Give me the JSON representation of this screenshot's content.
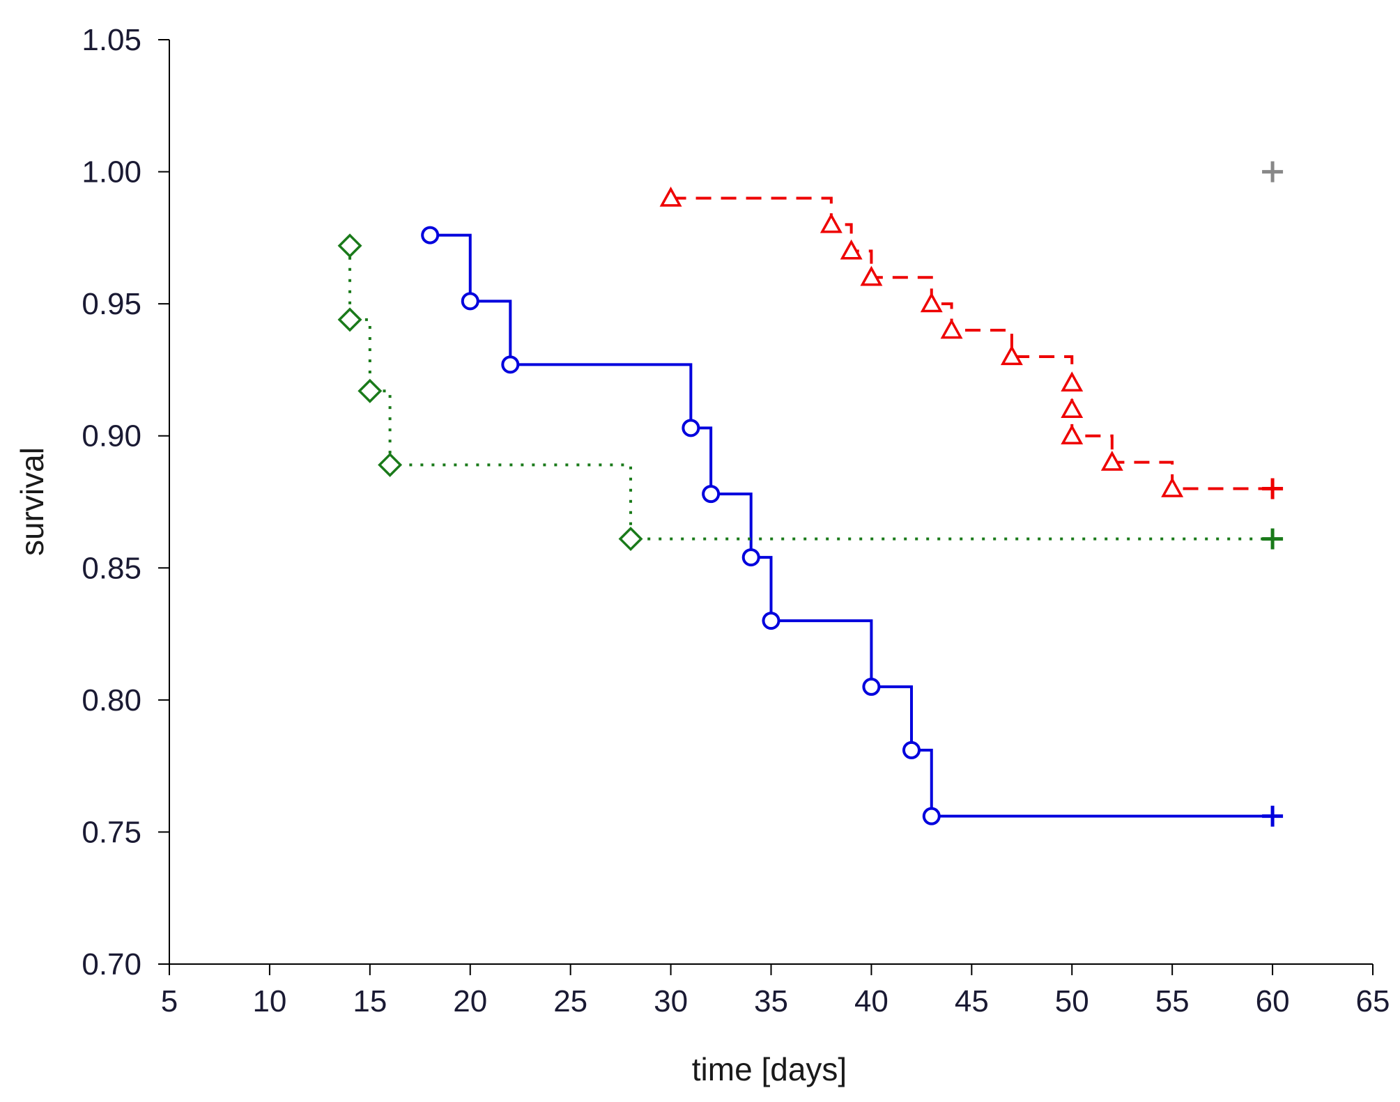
{
  "chart_data": {
    "type": "line",
    "title": "",
    "xlabel": "time [days]",
    "ylabel": "survival",
    "xlim": [
      5,
      65
    ],
    "ylim": [
      0.7,
      1.05
    ],
    "xticks": [
      "5",
      "10",
      "15",
      "20",
      "25",
      "30",
      "35",
      "40",
      "45",
      "50",
      "55",
      "60",
      "65"
    ],
    "yticks": [
      "0.70",
      "0.75",
      "0.80",
      "0.85",
      "0.90",
      "0.95",
      "1.00",
      "1.05"
    ],
    "grid": false,
    "series": [
      {
        "name": "blue-solid",
        "color": "#0000dd",
        "line_style": "solid",
        "marker": "circle",
        "points": [
          {
            "x": 18,
            "y": 0.976
          },
          {
            "x": 20,
            "y": 0.951
          },
          {
            "x": 22,
            "y": 0.927
          },
          {
            "x": 31,
            "y": 0.903
          },
          {
            "x": 32,
            "y": 0.878
          },
          {
            "x": 34,
            "y": 0.854
          },
          {
            "x": 35,
            "y": 0.83
          },
          {
            "x": 40,
            "y": 0.805
          },
          {
            "x": 42,
            "y": 0.781
          },
          {
            "x": 43,
            "y": 0.756
          }
        ],
        "censored": [
          {
            "x": 60,
            "y": 0.756
          }
        ]
      },
      {
        "name": "red-dashed",
        "color": "#ee0000",
        "line_style": "dashed",
        "marker": "triangle",
        "points": [
          {
            "x": 30,
            "y": 0.99
          },
          {
            "x": 38,
            "y": 0.98
          },
          {
            "x": 39,
            "y": 0.97
          },
          {
            "x": 40,
            "y": 0.96
          },
          {
            "x": 43,
            "y": 0.95
          },
          {
            "x": 44,
            "y": 0.94
          },
          {
            "x": 47,
            "y": 0.93
          },
          {
            "x": 50,
            "y": 0.92
          },
          {
            "x": 50,
            "y": 0.91
          },
          {
            "x": 50,
            "y": 0.9
          },
          {
            "x": 52,
            "y": 0.89
          },
          {
            "x": 55,
            "y": 0.88
          }
        ],
        "censored": [
          {
            "x": 60,
            "y": 0.88
          }
        ]
      },
      {
        "name": "green-dotted",
        "color": "#1a7a1a",
        "line_style": "dotted",
        "marker": "diamond",
        "points": [
          {
            "x": 14,
            "y": 0.972
          },
          {
            "x": 14,
            "y": 0.944
          },
          {
            "x": 15,
            "y": 0.917
          },
          {
            "x": 16,
            "y": 0.889
          },
          {
            "x": 28,
            "y": 0.861
          }
        ],
        "censored": [
          {
            "x": 60,
            "y": 0.861
          }
        ]
      },
      {
        "name": "gray",
        "color": "#888888",
        "line_style": "none",
        "marker": "plus",
        "points": [],
        "censored": [
          {
            "x": 60,
            "y": 1.0
          }
        ]
      }
    ]
  }
}
